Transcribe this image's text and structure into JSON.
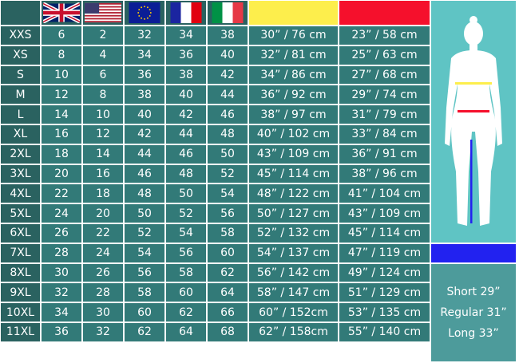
{
  "header": {
    "flags": [
      "uk-flag",
      "us-flag",
      "eu-flag",
      "france-flag",
      "italy-flag"
    ],
    "bust_color": "#fdee4c",
    "waist_color": "#f5102c"
  },
  "colors": {
    "cell": "#327a78",
    "size_cell": "#2a6260",
    "figure_panel": "#5fc4c4",
    "inseam": "#2222f0",
    "length_panel": "#4d9b9b"
  },
  "rows": [
    [
      "XXS",
      "6",
      "2",
      "32",
      "34",
      "38",
      "30” / 76 cm",
      "23” / 58 cm"
    ],
    [
      "XS",
      "8",
      "4",
      "34",
      "36",
      "40",
      "32” / 81 cm",
      "25” / 63 cm"
    ],
    [
      "S",
      "10",
      "6",
      "36",
      "38",
      "42",
      "34” / 86 cm",
      "27” / 68 cm"
    ],
    [
      "M",
      "12",
      "8",
      "38",
      "40",
      "44",
      "36” / 92 cm",
      "29” / 74 cm"
    ],
    [
      "L",
      "14",
      "10",
      "40",
      "42",
      "46",
      "38” / 97 cm",
      "31” / 79 cm"
    ],
    [
      "XL",
      "16",
      "12",
      "42",
      "44",
      "48",
      "40” / 102 cm",
      "33” / 84 cm"
    ],
    [
      "2XL",
      "18",
      "14",
      "44",
      "46",
      "50",
      "43” / 109 cm",
      "36” / 91 cm"
    ],
    [
      "3XL",
      "20",
      "16",
      "46",
      "48",
      "52",
      "45” / 114 cm",
      "38” / 96 cm"
    ],
    [
      "4XL",
      "22",
      "18",
      "48",
      "50",
      "54",
      "48” / 122 cm",
      "41” / 104 cm"
    ],
    [
      "5XL",
      "24",
      "20",
      "50",
      "52",
      "56",
      "50” / 127 cm",
      "43” / 109 cm"
    ],
    [
      "6XL",
      "26",
      "22",
      "52",
      "54",
      "58",
      "52” / 132 cm",
      "45” / 114 cm"
    ],
    [
      "7XL",
      "28",
      "24",
      "54",
      "56",
      "60",
      "54” / 137 cm",
      "47” / 119 cm"
    ],
    [
      "8XL",
      "30",
      "26",
      "56",
      "58",
      "62",
      "56” / 142 cm",
      "49” / 124 cm"
    ],
    [
      "9XL",
      "32",
      "28",
      "58",
      "60",
      "64",
      "58” / 147 cm",
      "51” / 129 cm"
    ],
    [
      "10XL",
      "34",
      "30",
      "60",
      "62",
      "66",
      "60” / 152cm",
      "53” / 135 cm"
    ],
    [
      "11XL",
      "36",
      "32",
      "62",
      "64",
      "68",
      "62” / 158cm",
      "55” / 140 cm"
    ]
  ],
  "lengths": [
    "Short 29”",
    "Regular 31”",
    "Long 33”"
  ]
}
